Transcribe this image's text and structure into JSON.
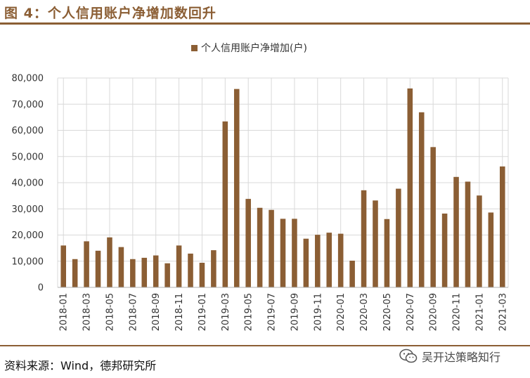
{
  "figure": {
    "title": "图 4：个人信用账户净增加数回升",
    "source": "资料来源：Wind，德邦研究所",
    "watermark": "吴开达策略知行",
    "watermark_icon": "wechat-icon"
  },
  "colors": {
    "bar": "#8B5E34",
    "title": "#8B5E34",
    "rule": "#8B5E34",
    "grid": "#d9d9d9"
  },
  "chart_data": {
    "type": "bar",
    "legend": {
      "placement": "top-center",
      "entries": [
        "个人信用账户净增加(户)"
      ]
    },
    "series": [
      {
        "name": "个人信用账户净增加(户)",
        "values": [
          16000,
          10800,
          17600,
          14000,
          19100,
          15400,
          10800,
          11300,
          12200,
          9200,
          16000,
          12900,
          9400,
          14200,
          63400,
          75800,
          33800,
          30400,
          29600,
          26200,
          26200,
          18600,
          20100,
          20900,
          20500,
          10200,
          37100,
          33200,
          26100,
          37700,
          76000,
          66900,
          53600,
          28200,
          42200,
          40400,
          35100,
          28600,
          46200
        ]
      }
    ],
    "categories": [
      "2018-01",
      "2018-02",
      "2018-03",
      "2018-04",
      "2018-05",
      "2018-06",
      "2018-07",
      "2018-08",
      "2018-09",
      "2018-10",
      "2018-11",
      "2018-12",
      "2019-01",
      "2019-02",
      "2019-03",
      "2019-04",
      "2019-05",
      "2019-06",
      "2019-07",
      "2019-08",
      "2019-09",
      "2019-10",
      "2019-11",
      "2019-12",
      "2020-01",
      "2020-02",
      "2020-03",
      "2020-04",
      "2020-05",
      "2020-06",
      "2020-07",
      "2020-08",
      "2020-09",
      "2020-10",
      "2020-11",
      "2020-12",
      "2021-01",
      "2021-02",
      "2021-03"
    ],
    "x_tick_labels": [
      "2018-01",
      "2018-03",
      "2018-05",
      "2018-07",
      "2018-09",
      "2018-11",
      "2019-01",
      "2019-03",
      "2019-05",
      "2019-07",
      "2019-09",
      "2019-11",
      "2020-01",
      "2020-03",
      "2020-05",
      "2020-07",
      "2020-09",
      "2020-11",
      "2021-01",
      "2021-03"
    ],
    "y_ticks": [
      "0",
      "10,000",
      "20,000",
      "30,000",
      "40,000",
      "50,000",
      "60,000",
      "70,000",
      "80,000"
    ],
    "ylim": [
      0,
      80000
    ],
    "grid": true
  }
}
